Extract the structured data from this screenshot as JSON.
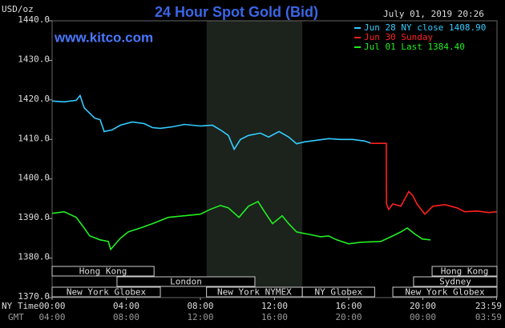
{
  "chart_data": {
    "type": "line",
    "title": "24 Hour Spot Gold (Bid)",
    "timestamp": "July 01, 2019 20:26",
    "watermark": "www.kitco.com",
    "y_label": "USD/oz",
    "x_label": "NY Time",
    "x2_label": "GMT",
    "background": "#000000",
    "xlim": [
      0,
      24
    ],
    "ylim": [
      1370,
      1440
    ],
    "yticks": [
      {
        "value": 1370,
        "label": "1370.0"
      },
      {
        "value": 1380,
        "label": "1380.0"
      },
      {
        "value": 1390,
        "label": "1390.0"
      },
      {
        "value": 1400,
        "label": "1400.0"
      },
      {
        "value": 1410,
        "label": "1410.0"
      },
      {
        "value": 1420,
        "label": "1420.0"
      },
      {
        "value": 1430,
        "label": "1430.0"
      },
      {
        "value": 1440,
        "label": "1440.0"
      }
    ],
    "xticks": [
      {
        "value": 0,
        "label": "00:00"
      },
      {
        "value": 4,
        "label": "04:00"
      },
      {
        "value": 8,
        "label": "08:00"
      },
      {
        "value": 12,
        "label": "12:00"
      },
      {
        "value": 16,
        "label": "16:00"
      },
      {
        "value": 20,
        "label": "20:00"
      },
      {
        "value": 23.98,
        "label": "23:59"
      }
    ],
    "x2tick_labels": [
      "04:00",
      "08:00",
      "12:00",
      "16:00",
      "20:00",
      "00:00",
      "03:59"
    ],
    "highlight": [
      8.33,
      13.5
    ],
    "sessions": [
      {
        "label": "Hong Kong",
        "start": 0,
        "end": 5.5,
        "row": 0
      },
      {
        "label": "Hong Kong",
        "start": 20.5,
        "end": 24,
        "row": 0
      },
      {
        "label": "London",
        "start": 3.5,
        "end": 10.94,
        "row": 1
      },
      {
        "label": "Sydney",
        "start": 19.5,
        "end": 24,
        "row": 1
      },
      {
        "label": "New York Globex",
        "start": 0,
        "end": 5.84,
        "row": 2
      },
      {
        "label": "New York NYMEX",
        "start": 8.33,
        "end": 13.5,
        "row": 2
      },
      {
        "label": "NY Globex",
        "start": 13.5,
        "end": 17.4,
        "row": 2
      },
      {
        "label": "New York Globex",
        "start": 18.38,
        "end": 24,
        "row": 2
      }
    ],
    "series": [
      {
        "name": "Jun 28 NY close 1408.90",
        "color": "#33ccff",
        "x": [
          0,
          0.65,
          1.3,
          1.51,
          1.73,
          2.29,
          2.59,
          2.81,
          3.24,
          3.68,
          4.32,
          4.97,
          5.41,
          5.84,
          6.49,
          7.14,
          8.0,
          8.65,
          9.08,
          9.51,
          9.82,
          10.16,
          10.59,
          11.24,
          11.68,
          12.24,
          12.76,
          13.19,
          13.62,
          14.27,
          14.92,
          15.57,
          16.22,
          16.86,
          17.17
        ],
        "values": [
          1419.7,
          1419.5,
          1419.9,
          1421.1,
          1418,
          1415.4,
          1415,
          1412,
          1412.4,
          1413.6,
          1414.4,
          1414,
          1413,
          1412.8,
          1413.2,
          1413.8,
          1413.4,
          1413.6,
          1412.4,
          1411,
          1407.5,
          1410,
          1411,
          1411.6,
          1410.6,
          1412,
          1410.6,
          1408.9,
          1409.4,
          1409.8,
          1410.2,
          1410,
          1410,
          1409.6,
          1409.1
        ]
      },
      {
        "name": "Jun 30 Sunday",
        "color": "#ff2020",
        "x": [
          17.17,
          18.03,
          18.04,
          18.16,
          18.38,
          18.81,
          19.24,
          19.46,
          19.68,
          20.11,
          20.54,
          21.19,
          21.84,
          22.27,
          22.92,
          23.57,
          23.98
        ],
        "values": [
          1409,
          1409,
          1393.7,
          1392.3,
          1393.7,
          1393.1,
          1396.8,
          1395.8,
          1393.7,
          1391.1,
          1393.1,
          1393.5,
          1392.7,
          1391.7,
          1391.9,
          1391.5,
          1391.7
        ]
      },
      {
        "name": "Jul 01 Last 1384.40",
        "color": "#22ee22",
        "x": [
          0,
          0.65,
          1.3,
          1.73,
          2.03,
          2.59,
          3.03,
          3.16,
          3.68,
          4.11,
          4.76,
          5.41,
          6.27,
          7.14,
          8.0,
          8.52,
          9.08,
          9.51,
          10.08,
          10.59,
          11.11,
          11.46,
          11.89,
          12.41,
          12.76,
          13.19,
          13.84,
          14.49,
          14.92,
          15.35,
          16.0,
          16.65,
          17.73,
          18.38,
          18.81,
          19.16,
          19.59,
          19.98,
          20.41
        ],
        "values": [
          1391.3,
          1391.7,
          1390.3,
          1387.6,
          1385.6,
          1384.6,
          1384.2,
          1382.2,
          1385,
          1386.6,
          1387.6,
          1388.7,
          1390.3,
          1390.7,
          1391.1,
          1392.3,
          1393.3,
          1392.7,
          1390.3,
          1393.1,
          1394.3,
          1391.7,
          1388.7,
          1390.7,
          1388.7,
          1386.6,
          1386,
          1385.4,
          1385.6,
          1384.6,
          1383.6,
          1384,
          1384.2,
          1385.6,
          1386.6,
          1387.6,
          1386,
          1384.8,
          1384.6
        ]
      }
    ]
  }
}
